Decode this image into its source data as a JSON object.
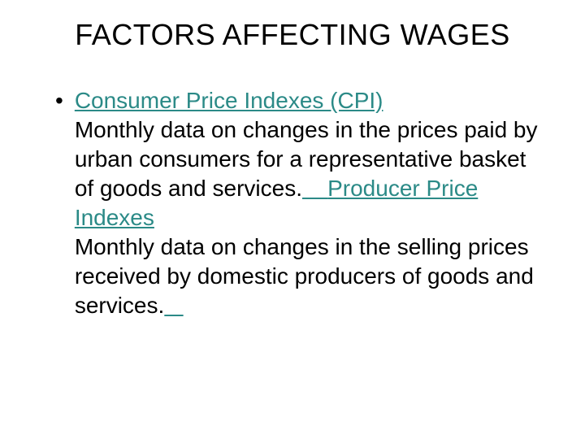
{
  "title": "FACTORS AFFECTING WAGES",
  "bullet": "•",
  "link1": "Consumer Price Indexes (CPI)",
  "body1": "Monthly data on changes in the prices paid by urban consumers for a representative basket of goods and services.",
  "spacer1": "    ",
  "link2": "Producer Price Indexes",
  "body2": "Monthly data on changes in the selling prices received by domestic producers of goods and services.",
  "spacer2": "   ",
  "colors": {
    "link": "#2b8a87",
    "text": "#000000",
    "background": "#ffffff"
  },
  "typography": {
    "title_fontsize": 36,
    "body_fontsize": 28,
    "line_height": 36,
    "font_family": "Arial"
  }
}
